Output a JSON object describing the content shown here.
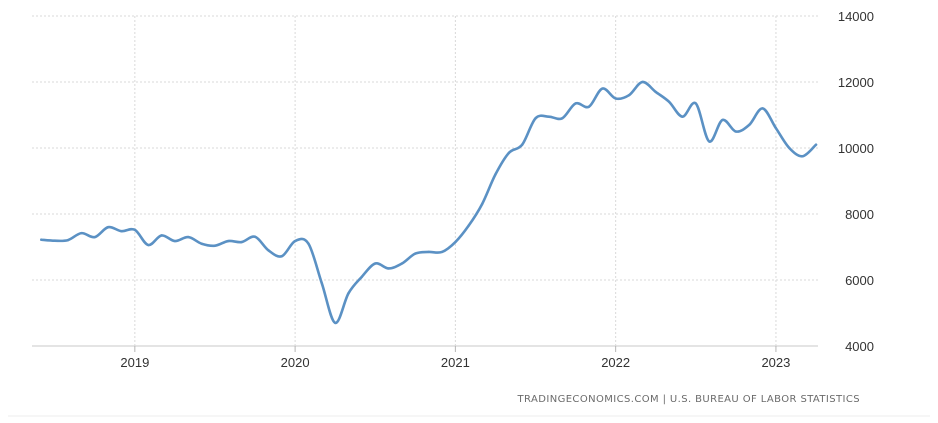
{
  "chart_data": {
    "type": "line",
    "title": "",
    "xlabel": "",
    "ylabel": "",
    "xlim": [
      "2018-05",
      "2023-04"
    ],
    "ylim": [
      4000,
      14000
    ],
    "y_ticks": [
      "4000",
      "6000",
      "8000",
      "10000",
      "12000",
      "14000"
    ],
    "x_ticks": [
      "2019",
      "2020",
      "2021",
      "2022",
      "2023"
    ],
    "grid": true,
    "legend": "none",
    "series": [
      {
        "name": "",
        "color": "#5b91c4",
        "points": [
          [
            "2018-06",
            7220
          ],
          [
            "2018-07",
            7190
          ],
          [
            "2018-08",
            7210
          ],
          [
            "2018-09",
            7420
          ],
          [
            "2018-10",
            7300
          ],
          [
            "2018-11",
            7600
          ],
          [
            "2018-12",
            7480
          ],
          [
            "2019-01",
            7520
          ],
          [
            "2019-02",
            7060
          ],
          [
            "2019-03",
            7350
          ],
          [
            "2019-04",
            7180
          ],
          [
            "2019-05",
            7300
          ],
          [
            "2019-06",
            7100
          ],
          [
            "2019-07",
            7040
          ],
          [
            "2019-08",
            7180
          ],
          [
            "2019-09",
            7150
          ],
          [
            "2019-10",
            7310
          ],
          [
            "2019-11",
            6900
          ],
          [
            "2019-12",
            6720
          ],
          [
            "2020-01",
            7180
          ],
          [
            "2020-02",
            7100
          ],
          [
            "2020-03",
            5900
          ],
          [
            "2020-04",
            4700
          ],
          [
            "2020-05",
            5600
          ],
          [
            "2020-06",
            6100
          ],
          [
            "2020-07",
            6500
          ],
          [
            "2020-08",
            6350
          ],
          [
            "2020-09",
            6500
          ],
          [
            "2020-10",
            6800
          ],
          [
            "2020-11",
            6850
          ],
          [
            "2020-12",
            6850
          ],
          [
            "2021-01",
            7150
          ],
          [
            "2021-02",
            7650
          ],
          [
            "2021-03",
            8300
          ],
          [
            "2021-04",
            9200
          ],
          [
            "2021-05",
            9850
          ],
          [
            "2021-06",
            10100
          ],
          [
            "2021-07",
            10900
          ],
          [
            "2021-08",
            10950
          ],
          [
            "2021-09",
            10900
          ],
          [
            "2021-10",
            11350
          ],
          [
            "2021-11",
            11250
          ],
          [
            "2021-12",
            11800
          ],
          [
            "2022-01",
            11500
          ],
          [
            "2022-02",
            11600
          ],
          [
            "2022-03",
            12000
          ],
          [
            "2022-04",
            11700
          ],
          [
            "2022-05",
            11400
          ],
          [
            "2022-06",
            10950
          ],
          [
            "2022-07",
            11350
          ],
          [
            "2022-08",
            10200
          ],
          [
            "2022-09",
            10850
          ],
          [
            "2022-10",
            10500
          ],
          [
            "2022-11",
            10700
          ],
          [
            "2022-12",
            11200
          ],
          [
            "2023-01",
            10600
          ],
          [
            "2023-02",
            10000
          ],
          [
            "2023-03",
            9750
          ],
          [
            "2023-04",
            10100
          ]
        ]
      }
    ]
  },
  "source_label": "TRADINGECONOMICS.COM  |  U.S. BUREAU OF LABOR STATISTICS",
  "colors": {
    "line": "#5b91c4",
    "grid": "#d9d9d9",
    "tick_text": "#333333",
    "source_text": "#6b6b6b"
  }
}
